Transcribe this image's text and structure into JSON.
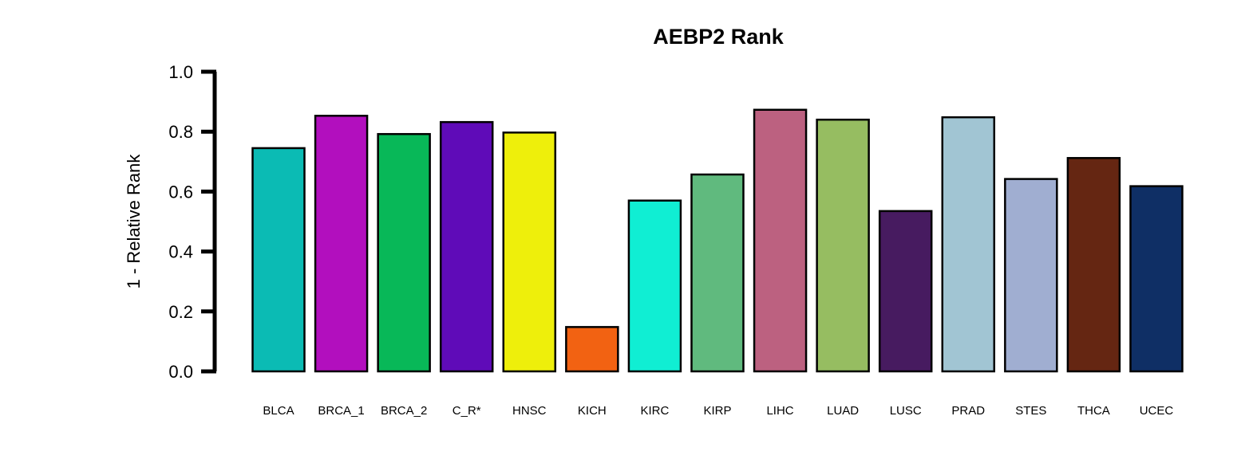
{
  "chart_data": {
    "type": "bar",
    "title": "AEBP2 Rank",
    "xlabel": "",
    "ylabel": "1 - Relative Rank",
    "ylim": [
      0,
      1
    ],
    "yticks": [
      "0.0",
      "0.2",
      "0.4",
      "0.6",
      "0.8",
      "1.0"
    ],
    "grid": false,
    "categories": [
      "BLCA",
      "BRCA_1",
      "BRCA_2",
      "C_R*",
      "HNSC",
      "KICH",
      "KIRC",
      "KIRP",
      "LIHC",
      "LUAD",
      "LUSC",
      "PRAD",
      "STES",
      "THCA",
      "UCEC"
    ],
    "values": [
      0.745,
      0.853,
      0.792,
      0.832,
      0.797,
      0.148,
      0.57,
      0.657,
      0.873,
      0.84,
      0.535,
      0.848,
      0.642,
      0.712,
      0.618
    ],
    "colors": [
      "#0BBBB4",
      "#B20FBE",
      "#08B858",
      "#5F0BB8",
      "#EEEF0B",
      "#F26212",
      "#10EED3",
      "#60BA7E",
      "#BC6180",
      "#96BD61",
      "#471B60",
      "#A1C5D3",
      "#A0AED1",
      "#652612",
      "#0F2F65"
    ]
  }
}
